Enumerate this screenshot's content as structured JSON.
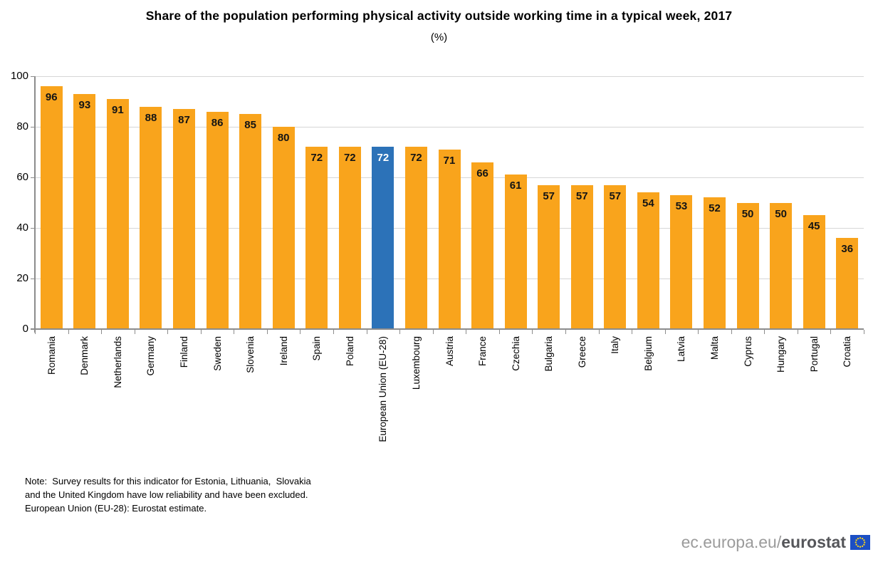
{
  "chart_data": {
    "type": "bar",
    "title": "Share of the population performing physical activity outside working time in a typical week, 2017",
    "subtitle": "(%)",
    "categories": [
      "Romania",
      "Denmark",
      "Netherlands",
      "Germany",
      "Finland",
      "Sweden",
      "Slovenia",
      "Ireland",
      "Spain",
      "Poland",
      "European Union (EU-28)",
      "Luxembourg",
      "Austria",
      "France",
      "Czechia",
      "Bulgaria",
      "Greece",
      "Italy",
      "Belgium",
      "Latvia",
      "Malta",
      "Cyprus",
      "Hungary",
      "Portugal",
      "Croatia"
    ],
    "values": [
      96,
      93,
      91,
      88,
      87,
      86,
      85,
      80,
      72,
      72,
      72,
      72,
      71,
      66,
      61,
      57,
      57,
      57,
      54,
      53,
      52,
      50,
      50,
      45,
      36
    ],
    "highlight_category": "European Union (EU-28)",
    "highlight_index": 10,
    "ylim": [
      0,
      100
    ],
    "yticks": [
      0,
      20,
      40,
      60,
      80,
      100
    ],
    "grid": "horizontal",
    "legend": "none",
    "bar_color": "#F9A41C",
    "highlight_color": "#2C72B8",
    "value_label_color": "#141414",
    "highlight_value_label_color": "#FFFFFF"
  },
  "note": {
    "line1": "Note:  Survey results for this indicator for Estonia, Lithuania,  Slovakia",
    "line2": "and the United Kingdom have low reliability and have been excluded.",
    "line3": "European Union (EU-28): Eurostat estimate."
  },
  "footer": {
    "url_prefix": "ec.europa.eu/",
    "brand": "eurostat",
    "flag_colors": {
      "field": "#1C4FC4",
      "stars": "#FFD617"
    }
  }
}
